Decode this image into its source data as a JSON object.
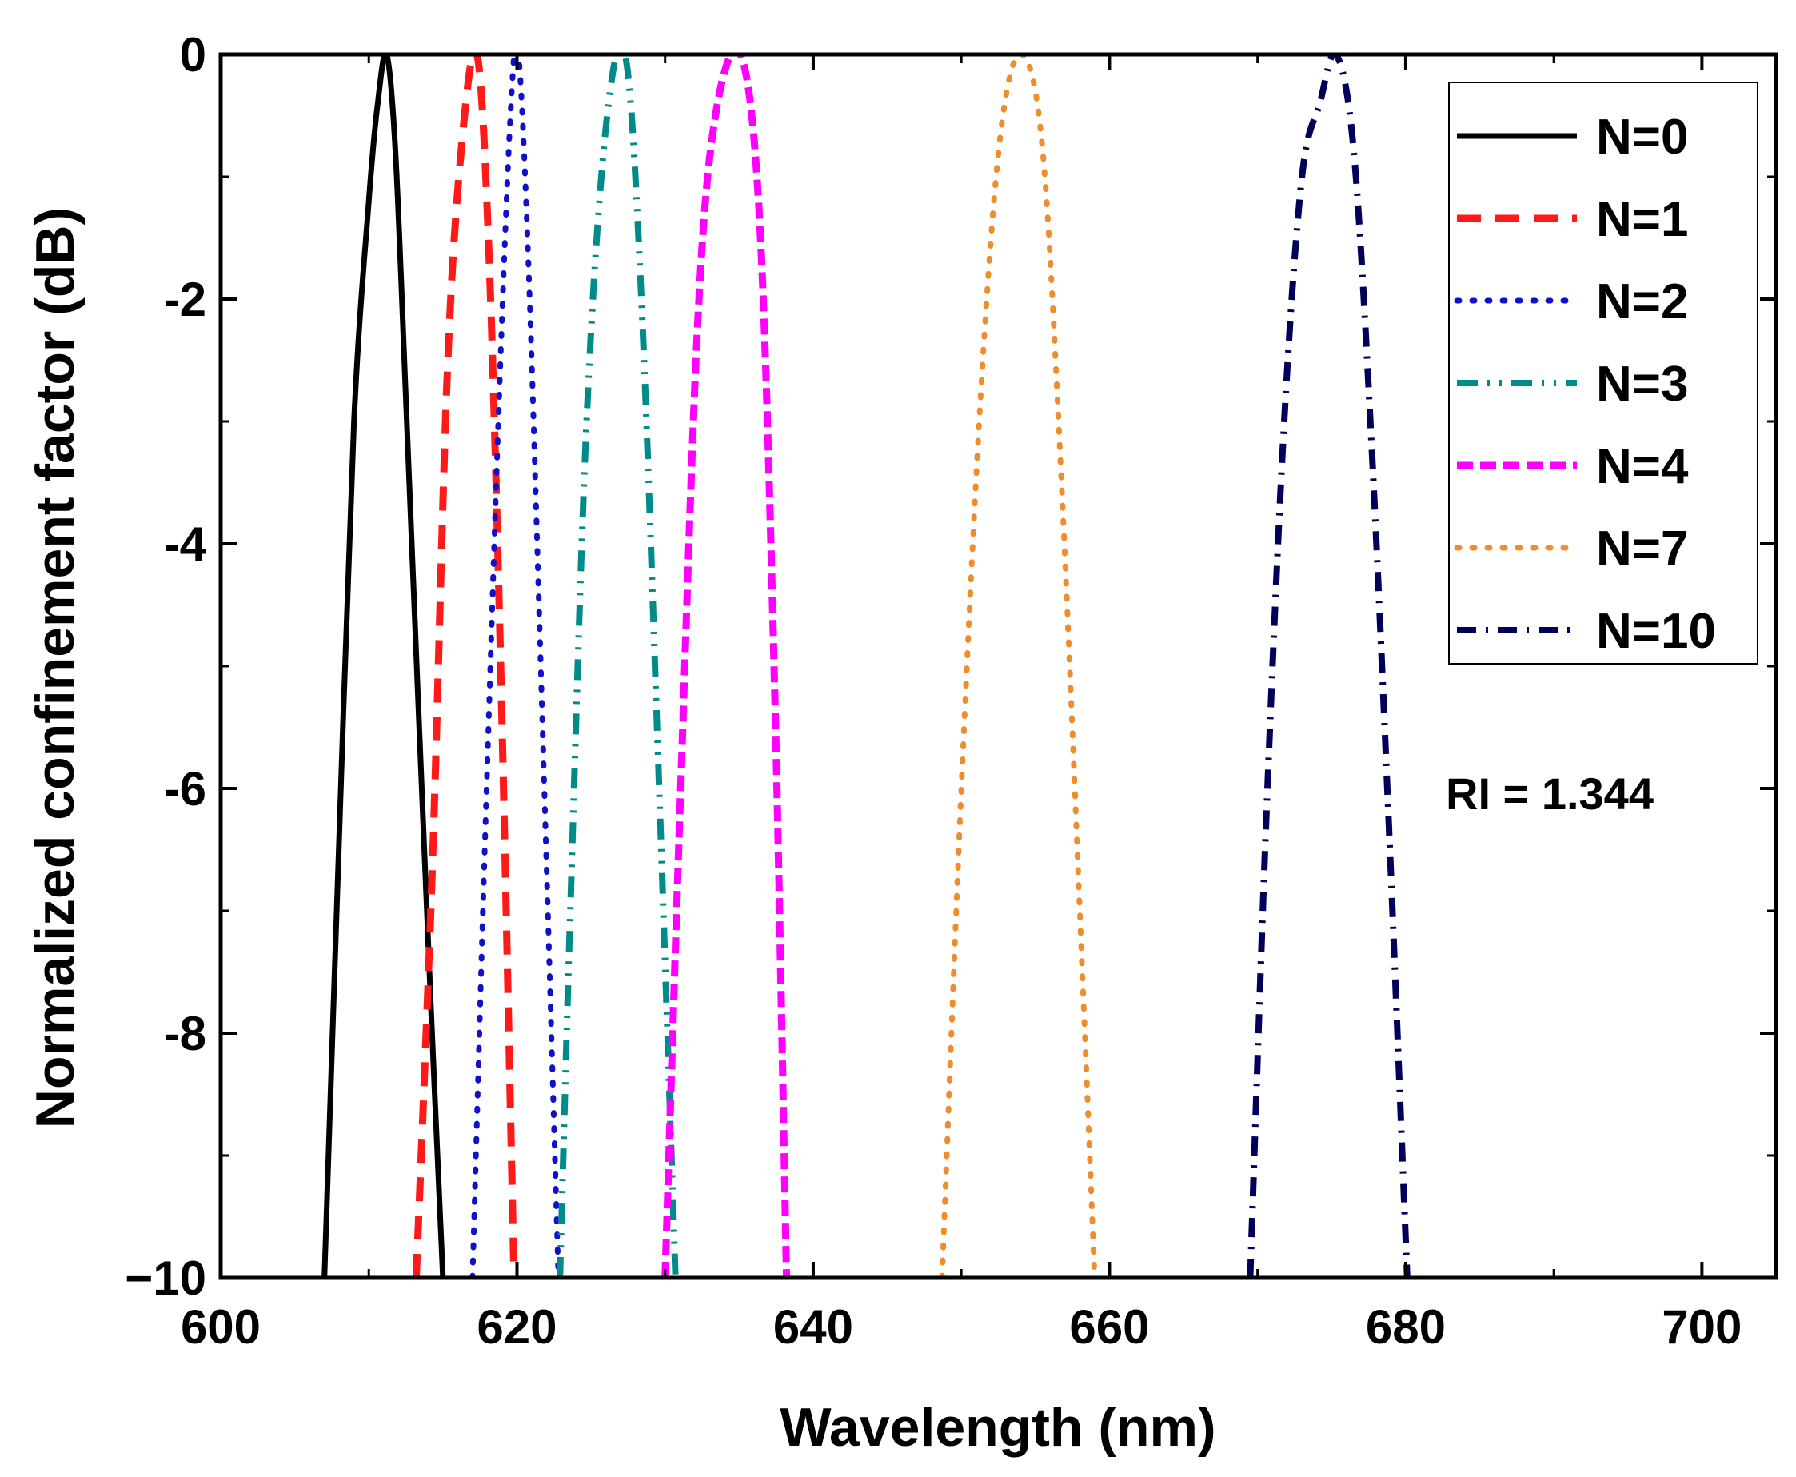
{
  "chart_data": {
    "type": "line",
    "title": "",
    "xlabel": "Wavelength (nm)",
    "ylabel": "Normalized confinement factor (dB)",
    "xlim": [
      600,
      705
    ],
    "ylim": [
      -10,
      0
    ],
    "xticks": [
      600,
      620,
      640,
      660,
      680,
      700
    ],
    "xtick_labels": [
      "600",
      "620",
      "640",
      "660",
      "680",
      "700"
    ],
    "yticks": [
      0,
      -2,
      -4,
      -6,
      -8,
      -10
    ],
    "ytick_labels": [
      "0",
      "-2",
      "-4",
      "-6",
      "-8",
      "−10"
    ],
    "grid": false,
    "legend_position": "top-right",
    "annotation": "RI = 1.344",
    "series": [
      {
        "name": "N=0",
        "color": "#000000",
        "style": "solid",
        "x": [
          607.0,
          608.0,
          609.0,
          610.0,
          610.6,
          611.2,
          611.8,
          612.5,
          613.3,
          614.2,
          615.0
        ],
        "y": [
          -10,
          -6.4,
          -3.0,
          -1.2,
          -0.4,
          0,
          -0.8,
          -2.8,
          -5.2,
          -7.8,
          -10
        ]
      },
      {
        "name": "N=1",
        "color": "#ff1a1a",
        "style": "dash",
        "x": [
          613.2,
          614.3,
          615.3,
          616.3,
          617.3,
          618.1,
          618.9,
          619.8
        ],
        "y": [
          -10,
          -6.6,
          -2.6,
          -0.7,
          0,
          -1.6,
          -5.0,
          -10
        ]
      },
      {
        "name": "N=2",
        "color": "#1010c8",
        "style": "dot",
        "x": [
          617.0,
          617.8,
          618.8,
          619.6,
          620.1,
          620.8,
          621.7,
          622.8
        ],
        "y": [
          -10,
          -6.6,
          -2.8,
          -0.4,
          0,
          -1.8,
          -5.4,
          -10
        ]
      },
      {
        "name": "N=3",
        "color": "#008b8b",
        "style": "dashdotdot",
        "x": [
          622.9,
          623.6,
          624.7,
          626.0,
          627.3,
          628.4,
          629.6,
          630.7
        ],
        "y": [
          -10,
          -7.0,
          -3.0,
          -0.6,
          0,
          -2.0,
          -6.0,
          -10
        ]
      },
      {
        "name": "N=4",
        "color": "#ff00ff",
        "style": "shortdash",
        "x": [
          630.0,
          631.0,
          632.2,
          633.4,
          635.1,
          636.4,
          637.4,
          638.2
        ],
        "y": [
          -10,
          -6.2,
          -2.2,
          -0.5,
          0,
          -1.4,
          -5.2,
          -10
        ]
      },
      {
        "name": "N=7",
        "color": "#f08c2c",
        "style": "dot",
        "x": [
          648.7,
          650.0,
          651.4,
          652.7,
          654.1,
          655.5,
          656.8,
          658.2,
          659.0
        ],
        "y": [
          -10,
          -6.0,
          -2.6,
          -0.6,
          0,
          -0.8,
          -3.6,
          -7.6,
          -10
        ]
      },
      {
        "name": "N=10",
        "color": "#00005a",
        "style": "dashdot",
        "x": [
          669.5,
          670.6,
          671.8,
          673.0,
          674.2,
          675.3,
          676.5,
          677.7,
          678.9,
          680.1
        ],
        "y": [
          -10,
          -6.2,
          -3.0,
          -1.0,
          -0.4,
          0,
          -0.8,
          -3.2,
          -6.4,
          -10
        ]
      }
    ]
  }
}
